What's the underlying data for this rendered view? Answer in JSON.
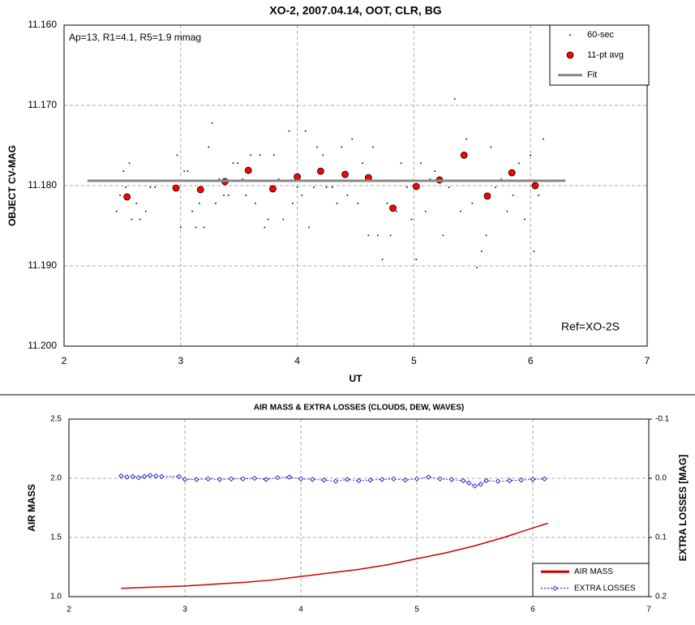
{
  "chart_data": [
    {
      "type": "scatter",
      "title": "XO-2, 2007.04.14, OOT, CLR, BG",
      "annotations": [
        "Ap=13, R1=4.1, R5=1.9 mmag",
        "Ref=XO-2S"
      ],
      "xlabel": "UT",
      "ylabel": "OBJECT CV-MAG",
      "xlim": [
        2,
        7
      ],
      "xticks": [
        2,
        3,
        4,
        5,
        6,
        7
      ],
      "ylim": [
        11.2,
        11.16
      ],
      "yticks": [
        {
          "value": 11.16,
          "label": "11.160"
        },
        {
          "value": 11.17,
          "label": "11.170"
        },
        {
          "value": 11.18,
          "label": "11.180"
        },
        {
          "value": 11.19,
          "label": "11.190"
        },
        {
          "value": 11.2,
          "label": "11.200"
        }
      ],
      "grid": true,
      "legend": "upper right",
      "series": [
        {
          "name": "60-sec",
          "color": "#000000",
          "marker": "dot",
          "line": false,
          "x": [
            2.45,
            2.48,
            2.51,
            2.53,
            2.56,
            2.58,
            2.62,
            2.65,
            2.7,
            2.74,
            2.78,
            2.97,
            3.0,
            3.03,
            3.06,
            3.1,
            3.13,
            3.16,
            3.2,
            3.24,
            3.27,
            3.3,
            3.33,
            3.37,
            3.41,
            3.45,
            3.49,
            3.53,
            3.56,
            3.6,
            3.64,
            3.68,
            3.72,
            3.75,
            3.8,
            3.84,
            3.88,
            3.93,
            3.96,
            4.0,
            4.04,
            4.07,
            4.1,
            4.14,
            4.17,
            4.22,
            4.25,
            4.3,
            4.34,
            4.38,
            4.43,
            4.47,
            4.52,
            4.56,
            4.61,
            4.65,
            4.69,
            4.73,
            4.77,
            4.8,
            4.85,
            4.89,
            4.94,
            4.98,
            5.02,
            5.06,
            5.1,
            5.14,
            5.18,
            5.25,
            5.3,
            5.35,
            5.4,
            5.45,
            5.5,
            5.54,
            5.58,
            5.62,
            5.66,
            5.7,
            5.75,
            5.8,
            5.85,
            5.9,
            5.95,
            6.0,
            6.03,
            6.07,
            6.11
          ],
          "values": [
            11.1832,
            11.1812,
            11.1782,
            11.1802,
            11.1772,
            11.1842,
            11.1822,
            11.1842,
            11.1832,
            11.1802,
            11.1802,
            11.1762,
            11.1852,
            11.1782,
            11.1782,
            11.1832,
            11.1852,
            11.1822,
            11.1852,
            11.1752,
            11.1722,
            11.1822,
            11.1792,
            11.1812,
            11.1812,
            11.1772,
            11.1772,
            11.1792,
            11.1812,
            11.1762,
            11.1822,
            11.1762,
            11.1852,
            11.1842,
            11.1762,
            11.1792,
            11.1842,
            11.1732,
            11.1822,
            11.1802,
            11.1812,
            11.1732,
            11.1852,
            11.1802,
            11.1752,
            11.1762,
            11.1802,
            11.1802,
            11.1822,
            11.1752,
            11.1812,
            11.1742,
            11.1822,
            11.1772,
            11.1862,
            11.1752,
            11.1862,
            11.1892,
            11.1822,
            11.1862,
            11.1832,
            11.1772,
            11.1802,
            11.1842,
            11.1892,
            11.1772,
            11.1832,
            11.1792,
            11.1782,
            11.1862,
            11.1802,
            11.1692,
            11.1832,
            11.1742,
            11.1822,
            11.1902,
            11.1882,
            11.1862,
            11.1752,
            11.1802,
            11.1792,
            11.1832,
            11.1812,
            11.1772,
            11.1842,
            11.1762,
            11.1882,
            11.1812,
            11.1742
          ]
        },
        {
          "name": "11-pt avg",
          "color": "#ff0000",
          "marker": "circle",
          "line": false,
          "x": [
            2.54,
            2.96,
            3.17,
            3.38,
            3.58,
            3.79,
            4.0,
            4.2,
            4.41,
            4.61,
            4.82,
            5.02,
            5.22,
            5.43,
            5.63,
            5.84,
            6.04
          ],
          "values": [
            11.1814,
            11.1803,
            11.1805,
            11.1795,
            11.1781,
            11.1804,
            11.1789,
            11.1782,
            11.1786,
            11.179,
            11.1828,
            11.1801,
            11.1793,
            11.1762,
            11.1813,
            11.1784,
            11.18
          ]
        },
        {
          "name": "Fit",
          "color": "#888888",
          "marker": "none",
          "line": true,
          "x": [
            2.2,
            6.3
          ],
          "values": [
            11.1794,
            11.1794
          ]
        }
      ]
    },
    {
      "type": "line",
      "title": "AIR MASS & EXTRA LOSSES (CLOUDS, DEW, WAVES)",
      "ylabel": "AIR MASS",
      "y2label": "EXTRA LOSSES [MAG]",
      "xlim": [
        2,
        7
      ],
      "xticks": [
        2,
        3,
        4,
        5,
        6,
        7
      ],
      "ylim": [
        1.0,
        2.5
      ],
      "yticks": [
        {
          "value": 1.0,
          "label": "1.0"
        },
        1.5,
        {
          "value": 2.0,
          "label": "2.0"
        },
        2.5
      ],
      "y2lim": [
        0.2,
        -0.1
      ],
      "y2ticks": [
        -0.1,
        {
          "value": 0.0,
          "label": "0.0"
        },
        0.1,
        0.2
      ],
      "grid": true,
      "legend": "lower right",
      "series": [
        {
          "name": "AIR MASS",
          "color": "#cc0000",
          "marker": "none",
          "line": true,
          "x": [
            2.45,
            2.7,
            3.0,
            3.25,
            3.5,
            3.75,
            4.0,
            4.25,
            4.5,
            4.75,
            5.0,
            5.25,
            5.5,
            5.75,
            6.0,
            6.13
          ],
          "values": [
            1.07,
            1.08,
            1.09,
            1.105,
            1.12,
            1.14,
            1.17,
            1.2,
            1.23,
            1.27,
            1.32,
            1.37,
            1.43,
            1.5,
            1.58,
            1.62
          ]
        },
        {
          "name": "EXTRA LOSSES",
          "color": "#0000cc",
          "marker": "diamond",
          "line": true,
          "axis": "y2",
          "x": [
            2.45,
            2.5,
            2.55,
            2.6,
            2.65,
            2.7,
            2.75,
            2.8,
            2.95,
            3.0,
            3.1,
            3.2,
            3.3,
            3.4,
            3.5,
            3.6,
            3.7,
            3.8,
            3.9,
            4.0,
            4.1,
            4.2,
            4.3,
            4.4,
            4.5,
            4.6,
            4.7,
            4.8,
            4.9,
            5.0,
            5.1,
            5.2,
            5.3,
            5.4,
            5.45,
            5.5,
            5.55,
            5.6,
            5.7,
            5.8,
            5.9,
            6.0,
            6.1
          ],
          "values": [
            -0.004,
            -0.002,
            -0.003,
            -0.001,
            -0.003,
            -0.005,
            -0.004,
            -0.003,
            -0.003,
            0.002,
            0.002,
            0.001,
            0.002,
            0.001,
            0.001,
            0.0,
            0.002,
            -0.001,
            -0.002,
            0.001,
            0.002,
            0.003,
            0.005,
            0.002,
            0.004,
            0.003,
            0.002,
            0.001,
            0.003,
            0.001,
            -0.002,
            0.001,
            0.002,
            0.004,
            0.008,
            0.013,
            0.01,
            0.004,
            0.005,
            0.004,
            0.003,
            0.002,
            0.001
          ]
        }
      ]
    }
  ]
}
